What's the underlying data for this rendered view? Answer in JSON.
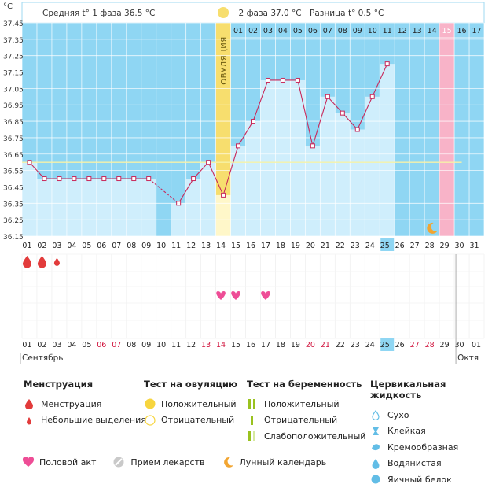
{
  "chart_data": {
    "type": "line",
    "y_unit": "°C",
    "y_ticks": [
      "37.45",
      "37.35",
      "37.25",
      "37.15",
      "37.05",
      "36.95",
      "36.85",
      "36.75",
      "36.65",
      "36.55",
      "36.45",
      "36.35",
      "36.25",
      "36.15"
    ],
    "ylim": [
      36.15,
      37.45
    ],
    "phase1_label": "Средняя t° 1 фаза",
    "phase1_value": "36.5 °C",
    "phase2_label": "2 фаза",
    "phase2_value": "37.0 °C",
    "diff_label": "Разница t°",
    "diff_value": "0.5 °C",
    "ovulation_label": "ОВУЛЯЦИЯ",
    "ovulation_day_index": 13,
    "pink_day_index": 28,
    "highlight_day_index": 24,
    "cover_line_value": 36.6,
    "cycle_days": [
      "01",
      "02",
      "03",
      "04",
      "05",
      "06",
      "07",
      "08",
      "09",
      "10",
      "11",
      "12",
      "13",
      "14",
      "15",
      "16",
      "17",
      "18",
      "19",
      "20",
      "21",
      "22",
      "23",
      "24",
      "25",
      "26",
      "27",
      "28",
      "29",
      "30",
      "31"
    ],
    "phase2_days": [
      "01",
      "02",
      "03",
      "04",
      "05",
      "06",
      "07",
      "08",
      "09",
      "10",
      "11",
      "12",
      "13",
      "14",
      "15",
      "16",
      "17"
    ],
    "calendar_days": [
      "01",
      "02",
      "03",
      "04",
      "05",
      "06",
      "07",
      "08",
      "09",
      "10",
      "11",
      "12",
      "13",
      "14",
      "15",
      "16",
      "17",
      "18",
      "19",
      "20",
      "21",
      "22",
      "23",
      "24",
      "25",
      "26",
      "27",
      "28",
      "29",
      "30",
      "01",
      "01"
    ],
    "weekend_day_indices": [
      5,
      6,
      12,
      13,
      19,
      20,
      26,
      27
    ],
    "month_start": "Сентябрь",
    "month_next": "Октя",
    "temperatures": [
      36.6,
      36.5,
      36.5,
      36.5,
      36.5,
      36.5,
      36.5,
      36.5,
      36.5,
      null,
      36.35,
      36.5,
      36.6,
      36.4,
      36.7,
      36.85,
      37.1,
      37.1,
      37.1,
      36.7,
      37.0,
      36.9,
      36.8,
      37.0,
      37.2,
      null,
      null,
      null,
      null,
      null,
      null
    ],
    "menstruation": [
      "heavy",
      "heavy",
      "light",
      null,
      null,
      null,
      null,
      null,
      null,
      null,
      null,
      null,
      null,
      null,
      null,
      null,
      null,
      null,
      null,
      null,
      null,
      null,
      null,
      null,
      null,
      null,
      null,
      null,
      null,
      null,
      null
    ],
    "intercourse_day_indices": [
      13,
      14,
      16
    ],
    "moon_day_index": 27
  },
  "legend": {
    "menstruation": {
      "title": "Менструация",
      "items": [
        "Менструация",
        "Небольшие выделения"
      ]
    },
    "ovulation_test": {
      "title": "Тест на овуляцию",
      "items": [
        "Положительный",
        "Отрицательный"
      ]
    },
    "pregnancy_test": {
      "title": "Тест на беременность",
      "items": [
        "Положительный",
        "Отрицательный",
        "Слабоположительный"
      ]
    },
    "cervical": {
      "title": "Цервикальная жидкость",
      "items": [
        "Сухо",
        "Клейкая",
        "Кремообразная",
        "Водянистая",
        "Яичный белок"
      ]
    },
    "bottom": [
      "Половой акт",
      "Прием лекарств",
      "Лунный календарь"
    ]
  },
  "colors": {
    "chart_bg": "#8fd6f3",
    "bar_fill": "#cfeefc",
    "grid": "#ffffff",
    "line": "#c8285a",
    "ovulation": "#f7de6e",
    "pink_column": "#f8b3c8",
    "highlight": "#8fd6f3",
    "drop": "#e23b3b",
    "heart": "#ee4d96",
    "moon": "#f2a531",
    "cover_line": "#f6f2a8"
  }
}
